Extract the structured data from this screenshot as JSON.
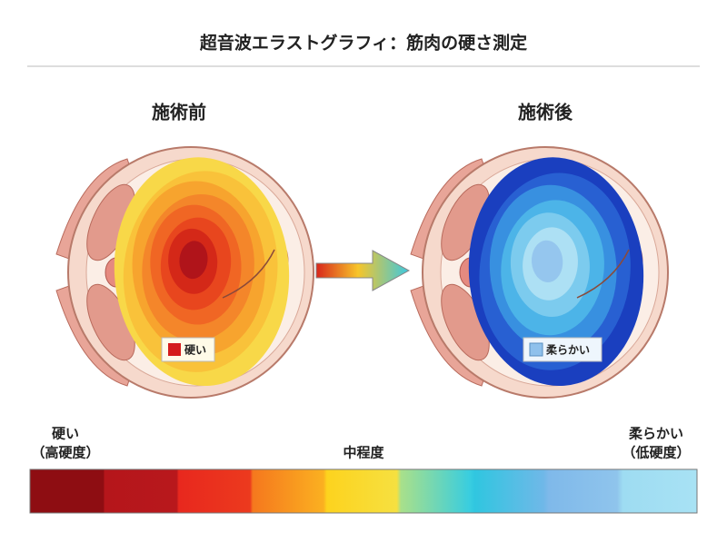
{
  "header": {
    "title": "超音波エラストグラフィ：筋肉の硬さ測定"
  },
  "panels": [
    {
      "label": "施術前",
      "legend": "硬い"
    },
    {
      "label": "施術後",
      "legend": "柔らかい"
    }
  ],
  "scale": {
    "left": [
      "硬い",
      "（高硬度）"
    ],
    "middle": "中程度",
    "right": [
      "柔らかい",
      "（低硬度）"
    ]
  }
}
